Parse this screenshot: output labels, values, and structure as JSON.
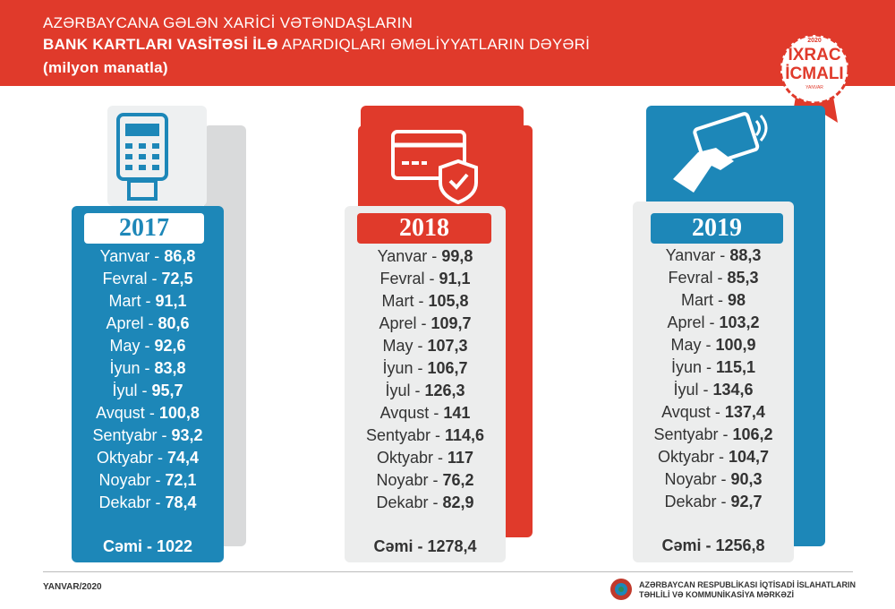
{
  "header": {
    "line1": "AZƏRBAYCANA GƏLƏN XARİCİ VƏTƏNDAŞLARIN",
    "line2_bold": "BANK KARTLARI VASİTƏSİ İLƏ",
    "line2_rest": "APARDIQLARI ƏMƏLİYYATLARIN DƏYƏRİ",
    "line3": "(milyon manatla)"
  },
  "badge": {
    "year": "2020",
    "line1": "İXRAC",
    "line2": "İCMALI",
    "month": "YANVAR"
  },
  "columns": [
    {
      "year": "2017",
      "rows": [
        {
          "month": "Yanvar -",
          "value": "86,8"
        },
        {
          "month": "Fevral -",
          "value": "72,5"
        },
        {
          "month": "Mart -",
          "value": "91,1"
        },
        {
          "month": "Aprel -",
          "value": "80,6"
        },
        {
          "month": "May -",
          "value": "92,6"
        },
        {
          "month": "İyun -",
          "value": "83,8"
        },
        {
          "month": "İyul -",
          "value": "95,7"
        },
        {
          "month": "Avqust -",
          "value": "100,8"
        },
        {
          "month": "Sentyabr -",
          "value": "93,2"
        },
        {
          "month": "Oktyabr -",
          "value": "74,4"
        },
        {
          "month": "Noyabr -",
          "value": "72,1"
        },
        {
          "month": "Dekabr -",
          "value": "78,4"
        }
      ],
      "total": {
        "label": "Cəmi -",
        "value": "1022"
      }
    },
    {
      "year": "2018",
      "rows": [
        {
          "month": "Yanvar -",
          "value": "99,8"
        },
        {
          "month": "Fevral -",
          "value": "91,1"
        },
        {
          "month": "Mart -",
          "value": "105,8"
        },
        {
          "month": "Aprel -",
          "value": "109,7"
        },
        {
          "month": "May -",
          "value": "107,3"
        },
        {
          "month": "İyun -",
          "value": "106,7"
        },
        {
          "month": "İyul -",
          "value": "126,3"
        },
        {
          "month": "Avqust -",
          "value": "141"
        },
        {
          "month": "Sentyabr -",
          "value": "114,6"
        },
        {
          "month": "Oktyabr -",
          "value": "117"
        },
        {
          "month": "Noyabr -",
          "value": "76,2"
        },
        {
          "month": "Dekabr -",
          "value": "82,9"
        }
      ],
      "total": {
        "label": "Cəmi -",
        "value": "1278,4"
      }
    },
    {
      "year": "2019",
      "rows": [
        {
          "month": "Yanvar -",
          "value": "88,3"
        },
        {
          "month": "Fevral -",
          "value": "85,3"
        },
        {
          "month": "Mart -",
          "value": "98"
        },
        {
          "month": "Aprel -",
          "value": "103,2"
        },
        {
          "month": "May -",
          "value": "100,9"
        },
        {
          "month": "İyun -",
          "value": "115,1"
        },
        {
          "month": "İyul -",
          "value": "134,6"
        },
        {
          "month": "Avqust -",
          "value": "137,4"
        },
        {
          "month": "Sentyabr -",
          "value": "106,2"
        },
        {
          "month": "Oktyabr -",
          "value": "104,7"
        },
        {
          "month": "Noyabr -",
          "value": "90,3"
        },
        {
          "month": "Dekabr -",
          "value": "92,7"
        }
      ],
      "total": {
        "label": "Cəmi -",
        "value": "1256,8"
      }
    }
  ],
  "footer": {
    "date": "YANVAR/2020",
    "org_line1": "AZƏRBAYCAN RESPUBLİKASI İQTİSADİ İSLAHATLARIN",
    "org_line2": "TƏHLİLİ VƏ KOMMUNİKASİYA MƏRKƏZİ"
  }
}
